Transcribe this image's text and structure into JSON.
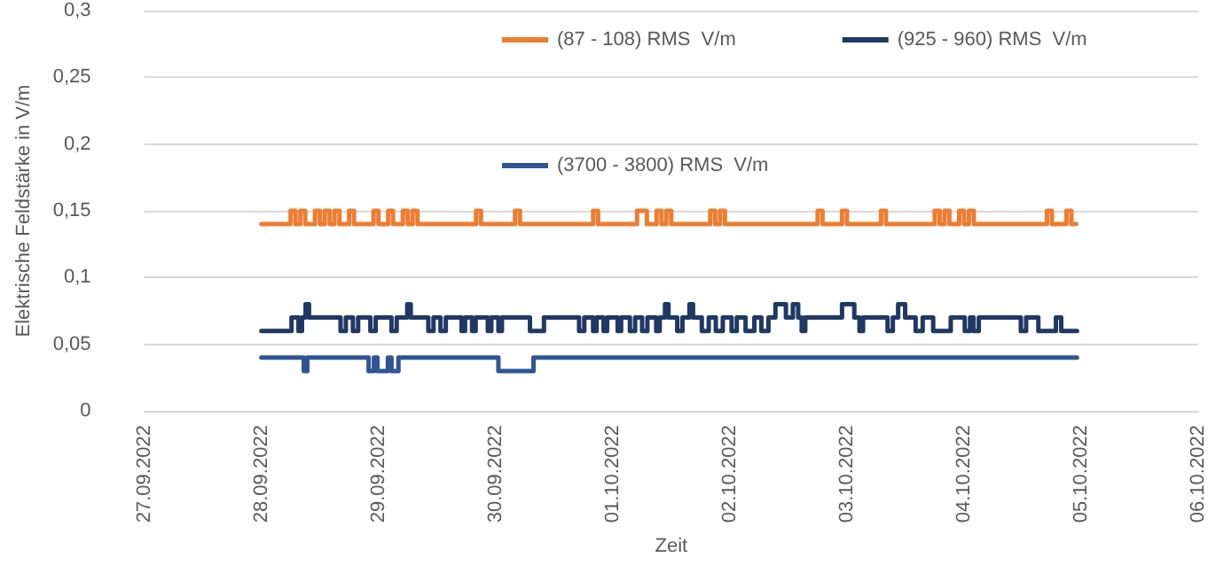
{
  "chart_data": {
    "type": "step",
    "xlabel": "Zeit",
    "ylabel": "Elektrische Feldstärke in V/m",
    "xlim": [
      "2022-09-27",
      "2022-10-06"
    ],
    "xticks": [
      {
        "value": "2022-09-27",
        "label": "27.09.2022"
      },
      {
        "value": "2022-09-28",
        "label": "28.09.2022"
      },
      {
        "value": "2022-09-29",
        "label": "29.09.2022"
      },
      {
        "value": "2022-09-30",
        "label": "30.09.2022"
      },
      {
        "value": "2022-10-01",
        "label": "01.10.2022"
      },
      {
        "value": "2022-10-02",
        "label": "02.10.2022"
      },
      {
        "value": "2022-10-03",
        "label": "03.10.2022"
      },
      {
        "value": "2022-10-04",
        "label": "04.10.2022"
      },
      {
        "value": "2022-10-05",
        "label": "05.10.2022"
      },
      {
        "value": "2022-10-06",
        "label": "06.10.2022"
      }
    ],
    "ylim": [
      0,
      0.3
    ],
    "yticks": [
      {
        "value": 0,
        "label": "0"
      },
      {
        "value": 0.05,
        "label": "0,05"
      },
      {
        "value": 0.1,
        "label": "0,1"
      },
      {
        "value": 0.15,
        "label": "0,15"
      },
      {
        "value": 0.2,
        "label": "0,2"
      },
      {
        "value": 0.25,
        "label": "0,25"
      },
      {
        "value": 0.3,
        "label": "0,3"
      }
    ],
    "grid": "y",
    "legend": "top right",
    "marker": "none",
    "line_style": "solid",
    "series": [
      {
        "name": "(87 - 108) RMS  V/m",
        "color": "#ed7d31",
        "x": [
          "2022-09-28T00:00",
          "2022-09-28T06:00",
          "2022-09-28T07:00",
          "2022-09-28T08:00",
          "2022-09-28T09:00",
          "2022-09-28T11:00",
          "2022-09-28T12:00",
          "2022-09-28T13:00",
          "2022-09-28T14:00",
          "2022-09-28T15:00",
          "2022-09-28T16:00",
          "2022-09-28T18:00",
          "2022-09-28T19:00",
          "2022-09-28T23:00",
          "2022-09-29T00:00",
          "2022-09-29T02:00",
          "2022-09-29T03:00",
          "2022-09-29T05:00",
          "2022-09-29T06:00",
          "2022-09-29T07:00",
          "2022-09-29T08:00",
          "2022-09-29T20:00",
          "2022-09-29T21:00",
          "2022-09-30T04:00",
          "2022-09-30T05:00",
          "2022-09-30T20:00",
          "2022-09-30T21:00",
          "2022-10-01T05:00",
          "2022-10-01T07:00",
          "2022-10-01T09:00",
          "2022-10-01T10:00",
          "2022-10-01T11:00",
          "2022-10-01T12:00",
          "2022-10-01T20:00",
          "2022-10-01T21:00",
          "2022-10-01T22:00",
          "2022-10-01T23:00",
          "2022-10-02T18:00",
          "2022-10-02T19:00",
          "2022-10-02T23:00",
          "2022-10-03T00:00",
          "2022-10-03T07:00",
          "2022-10-03T08:00",
          "2022-10-03T18:00",
          "2022-10-03T19:00",
          "2022-10-03T20:00",
          "2022-10-03T21:00",
          "2022-10-03T23:00",
          "2022-10-04T00:00",
          "2022-10-04T01:00",
          "2022-10-04T02:00",
          "2022-10-04T17:00",
          "2022-10-04T18:00",
          "2022-10-04T21:00",
          "2022-10-04T22:00",
          "2022-10-04T23:00"
        ],
        "values": [
          0.14,
          0.15,
          0.14,
          0.15,
          0.14,
          0.15,
          0.14,
          0.15,
          0.14,
          0.15,
          0.14,
          0.15,
          0.14,
          0.15,
          0.14,
          0.15,
          0.14,
          0.15,
          0.14,
          0.15,
          0.14,
          0.15,
          0.14,
          0.15,
          0.14,
          0.15,
          0.14,
          0.15,
          0.14,
          0.15,
          0.14,
          0.15,
          0.14,
          0.15,
          0.14,
          0.15,
          0.14,
          0.15,
          0.14,
          0.15,
          0.14,
          0.15,
          0.14,
          0.15,
          0.14,
          0.15,
          0.14,
          0.15,
          0.14,
          0.15,
          0.14,
          0.15,
          0.14,
          0.15,
          0.14,
          0.14
        ]
      },
      {
        "name": "(925 - 960) RMS  V/m",
        "color": "#203864",
        "x": [
          "2022-09-28T00:00",
          "2022-09-28T06:11",
          "2022-09-28T07:37",
          "2022-09-28T08:20",
          "2022-09-28T09:04",
          "2022-09-28T09:46",
          "2022-09-28T16:14",
          "2022-09-28T17:19",
          "2022-09-28T18:46",
          "2022-09-28T19:50",
          "2022-09-28T22:21",
          "2022-09-28T23:26",
          "2022-09-29T02:40",
          "2022-09-29T03:44",
          "2022-09-29T05:54",
          "2022-09-29T06:37",
          "2022-09-29T10:13",
          "2022-09-29T11:17",
          "2022-09-29T12:43",
          "2022-09-29T13:48",
          "2022-09-29T17:02",
          "2022-09-29T17:45",
          "2022-09-29T19:11",
          "2022-09-29T19:55",
          "2022-09-29T22:25",
          "2022-09-29T23:08",
          "2022-09-30T00:35",
          "2022-09-30T01:18",
          "2022-09-30T07:03",
          "2022-09-30T09:55",
          "2022-09-30T17:07",
          "2022-09-30T18:11",
          "2022-09-30T19:59",
          "2022-09-30T20:42",
          "2022-09-30T22:08",
          "2022-09-30T22:52",
          "2022-10-01T01:01",
          "2022-10-01T01:44",
          "2022-10-01T03:32",
          "2022-10-01T04:36",
          "2022-10-01T06:02",
          "2022-10-01T07:07",
          "2022-10-01T08:55",
          "2022-10-01T09:38",
          "2022-10-01T10:43",
          "2022-10-01T11:26",
          "2022-10-01T13:14",
          "2022-10-01T14:18",
          "2022-10-01T15:44",
          "2022-10-01T16:28",
          "2022-10-01T18:16",
          "2022-10-01T19:41",
          "2022-10-01T21:08",
          "2022-10-01T22:34",
          "2022-10-02T00:22",
          "2022-10-02T01:26",
          "2022-10-02T03:14",
          "2022-10-02T05:02",
          "2022-10-02T06:28",
          "2022-10-02T07:55",
          "2022-10-02T09:21",
          "2022-10-02T11:30",
          "2022-10-02T12:56",
          "2022-10-02T14:01",
          "2022-10-02T14:44",
          "2022-10-02T15:28",
          "2022-10-02T23:00",
          "2022-10-03T01:31",
          "2022-10-03T02:35",
          "2022-10-03T03:19",
          "2022-10-03T08:20",
          "2022-10-03T09:25",
          "2022-10-03T10:30",
          "2022-10-03T11:56",
          "2022-10-03T14:05",
          "2022-10-03T15:32",
          "2022-10-03T17:41",
          "2022-10-03T21:17",
          "2022-10-04T00:09",
          "2022-10-04T01:14",
          "2022-10-04T01:57",
          "2022-10-04T03:02",
          "2022-10-04T11:39",
          "2022-10-04T12:44",
          "2022-10-04T15:14",
          "2022-10-04T18:50",
          "2022-10-04T19:55",
          "2022-10-04T23:09"
        ],
        "values": [
          0.06,
          0.07,
          0.06,
          0.07,
          0.08,
          0.07,
          0.06,
          0.07,
          0.06,
          0.07,
          0.06,
          0.07,
          0.06,
          0.07,
          0.08,
          0.07,
          0.06,
          0.07,
          0.06,
          0.07,
          0.06,
          0.07,
          0.06,
          0.07,
          0.06,
          0.07,
          0.06,
          0.07,
          0.06,
          0.07,
          0.06,
          0.07,
          0.06,
          0.07,
          0.06,
          0.07,
          0.06,
          0.07,
          0.06,
          0.07,
          0.06,
          0.07,
          0.06,
          0.07,
          0.08,
          0.07,
          0.06,
          0.07,
          0.08,
          0.07,
          0.06,
          0.07,
          0.06,
          0.07,
          0.06,
          0.07,
          0.06,
          0.07,
          0.06,
          0.07,
          0.08,
          0.07,
          0.08,
          0.07,
          0.06,
          0.07,
          0.08,
          0.07,
          0.06,
          0.07,
          0.06,
          0.07,
          0.08,
          0.07,
          0.06,
          0.07,
          0.06,
          0.07,
          0.06,
          0.07,
          0.06,
          0.07,
          0.06,
          0.07,
          0.06,
          0.07,
          0.06,
          0.06
        ]
      },
      {
        "name": "(3700 - 3800) RMS  V/m",
        "color": "#2f5597",
        "x": [
          "2022-09-28T00:00",
          "2022-09-28T08:42",
          "2022-09-28T09:25",
          "2022-09-28T21:59",
          "2022-09-28T23:04",
          "2022-09-28T23:47",
          "2022-09-29T01:56",
          "2022-09-29T02:40",
          "2022-09-29T04:06",
          "2022-09-30T00:35",
          "2022-09-30T07:46",
          "2022-10-04T23:09"
        ],
        "values": [
          0.04,
          0.03,
          0.04,
          0.03,
          0.04,
          0.03,
          0.04,
          0.03,
          0.04,
          0.03,
          0.04,
          0.04
        ]
      }
    ]
  }
}
